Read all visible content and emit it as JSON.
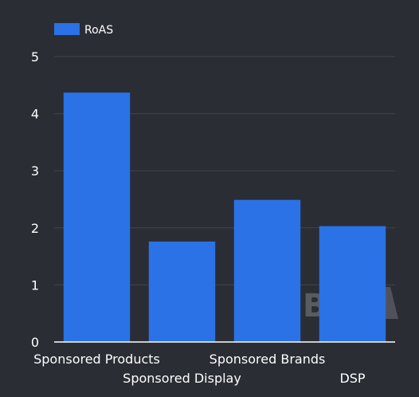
{
  "chart_data": {
    "type": "bar",
    "categories": [
      "Sponsored Products",
      "Sponsored Display",
      "Sponsored Brands",
      "DSP"
    ],
    "series": [
      {
        "name": "RoAS",
        "values": [
          4.37,
          1.76,
          2.49,
          2.03
        ]
      }
    ],
    "ylim": [
      0,
      5
    ],
    "yticks": [
      "0",
      "1",
      "2",
      "3",
      "4",
      "5"
    ],
    "grid": true,
    "legend_position": "top-left",
    "bar_color": "#2a72e5",
    "background": "#2b2d35"
  },
  "watermark": {
    "text": "Bid"
  }
}
